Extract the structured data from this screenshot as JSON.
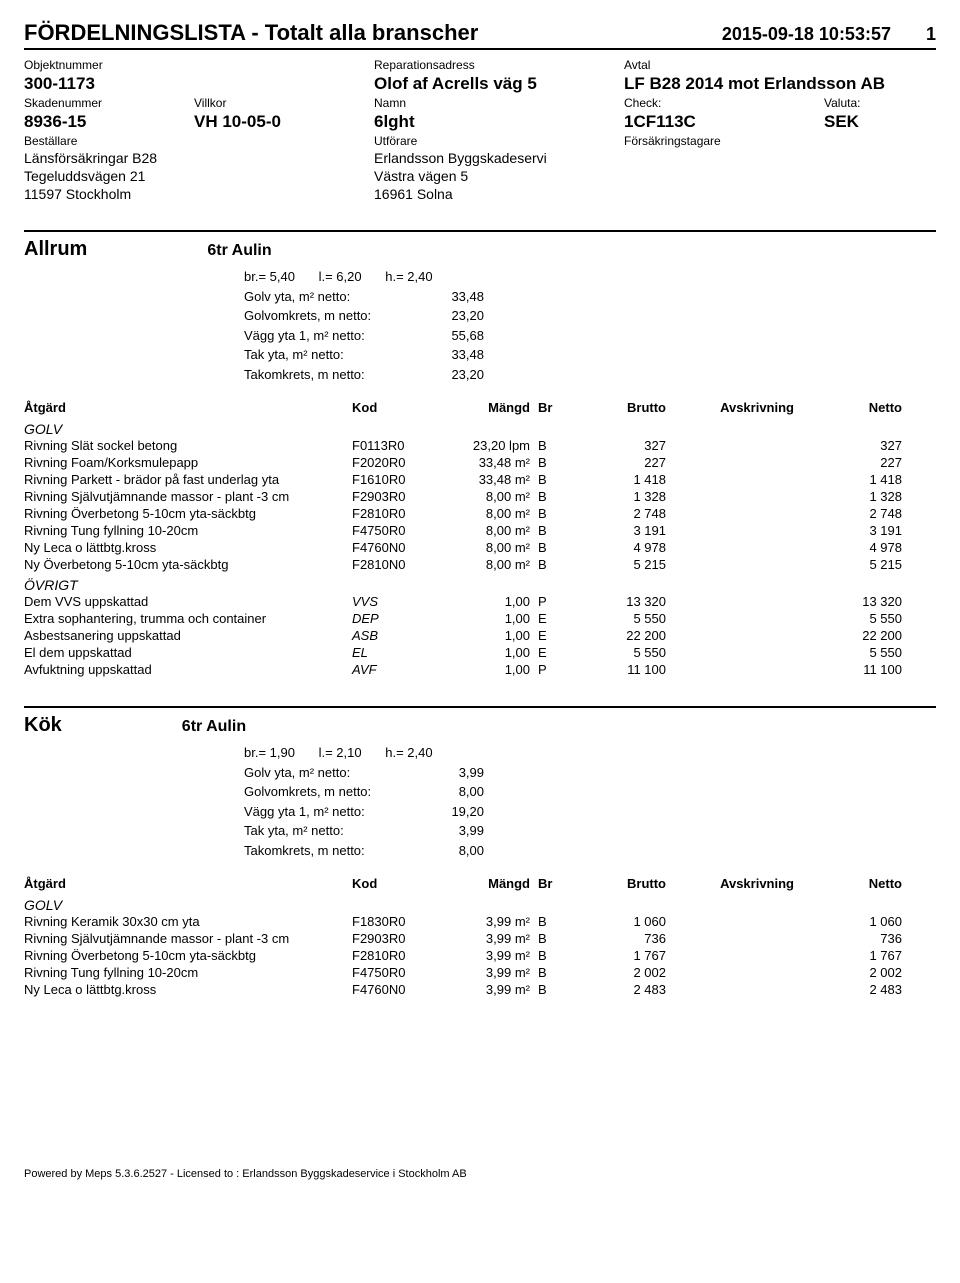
{
  "doc": {
    "title": "FÖRDELNINGSLISTA - Totalt alla branscher",
    "datetime": "2015-09-18 10:53:57",
    "page": "1"
  },
  "header": {
    "l_objekt": "Objektnummer",
    "objekt": "300-1173",
    "l_repadr": "Reparationsadress",
    "repadr": "Olof af Acrells väg 5",
    "l_avtal": "Avtal",
    "avtal": "LF B28 2014 mot Erlandsson AB",
    "l_skad": "Skadenummer",
    "skad": "8936-15",
    "l_villkor": "Villkor",
    "villkor": "VH 10-05-0",
    "l_namn": "Namn",
    "namn": "6lght",
    "l_check": "Check:",
    "check": "1CF113C",
    "l_valuta": "Valuta:",
    "valuta": "SEK",
    "l_best": "Beställare",
    "best1": "Länsförsäkringar B28",
    "best2": "Tegeluddsvägen 21",
    "best3": "11597 Stockholm",
    "l_utf": "Utförare",
    "utf1": "Erlandsson Byggskadeservi",
    "utf2": "Västra vägen 5",
    "utf3": "16961 Solna",
    "l_fors": "Försäkringstagare"
  },
  "cols": {
    "atgard": "Åtgärd",
    "kod": "Kod",
    "mangd": "Mängd",
    "br": "Br",
    "brutto": "Brutto",
    "avskr": "Avskrivning",
    "netto": "Netto"
  },
  "room1": {
    "name": "Allrum",
    "sub": "6tr Aulin",
    "dims": {
      "br": "br.= 5,40",
      "l": "l.= 6,20",
      "h": "h.=  2,40"
    },
    "metrics": [
      {
        "label": "Golv yta, m² netto:",
        "val": "33,48"
      },
      {
        "label": "Golvomkrets, m netto:",
        "val": "23,20"
      },
      {
        "label": "Vägg yta 1, m² netto:",
        "val": "55,68"
      },
      {
        "label": "Tak yta, m² netto:",
        "val": "33,48"
      },
      {
        "label": "Takomkrets, m netto:",
        "val": "23,20"
      }
    ],
    "group1": "GOLV",
    "rows1": [
      {
        "d": "Rivning Slät sockel betong",
        "k": "F0113R0",
        "m": "23,20 lpm",
        "b": "B",
        "brutto": "327",
        "netto": "327"
      },
      {
        "d": "Rivning Foam/Korksmulepapp",
        "k": "F2020R0",
        "m": "33,48 m²",
        "b": "B",
        "brutto": "227",
        "netto": "227"
      },
      {
        "d": "Rivning Parkett - brädor på fast underlag yta",
        "k": "F1610R0",
        "m": "33,48 m²",
        "b": "B",
        "brutto": "1 418",
        "netto": "1 418"
      },
      {
        "d": "Rivning Självutjämnande massor - plant -3 cm",
        "k": "F2903R0",
        "m": "8,00 m²",
        "b": "B",
        "brutto": "1 328",
        "netto": "1 328"
      },
      {
        "d": "Rivning Överbetong 5-10cm yta-säckbtg",
        "k": "F2810R0",
        "m": "8,00 m²",
        "b": "B",
        "brutto": "2 748",
        "netto": "2 748"
      },
      {
        "d": "Rivning Tung fyllning 10-20cm",
        "k": "F4750R0",
        "m": "8,00 m²",
        "b": "B",
        "brutto": "3 191",
        "netto": "3 191"
      },
      {
        "d": "Ny Leca o lättbtg.kross",
        "k": "F4760N0",
        "m": "8,00 m²",
        "b": "B",
        "brutto": "4 978",
        "netto": "4 978"
      },
      {
        "d": "Ny Överbetong 5-10cm yta-säckbtg",
        "k": "F2810N0",
        "m": "8,00 m²",
        "b": "B",
        "brutto": "5 215",
        "netto": "5 215"
      }
    ],
    "group2": "ÖVRIGT",
    "rows2": [
      {
        "d": "Dem VVS uppskattad",
        "k": "VVS",
        "m": "1,00",
        "b": "P",
        "brutto": "13 320",
        "netto": "13 320",
        "ital": true
      },
      {
        "d": "Extra sophantering, trumma och container",
        "k": "DEP",
        "m": "1,00",
        "b": "E",
        "brutto": "5 550",
        "netto": "5 550",
        "ital": true
      },
      {
        "d": "Asbestsanering uppskattad",
        "k": "ASB",
        "m": "1,00",
        "b": "E",
        "brutto": "22 200",
        "netto": "22 200",
        "ital": true
      },
      {
        "d": "El dem uppskattad",
        "k": "EL",
        "m": "1,00",
        "b": "E",
        "brutto": "5 550",
        "netto": "5 550",
        "ital": true
      },
      {
        "d": "Avfuktning uppskattad",
        "k": "AVF",
        "m": "1,00",
        "b": "P",
        "brutto": "11 100",
        "netto": "11 100",
        "ital": true
      }
    ]
  },
  "room2": {
    "name": "Kök",
    "sub": "6tr Aulin",
    "dims": {
      "br": "br.= 1,90",
      "l": "l.= 2,10",
      "h": "h.=  2,40"
    },
    "metrics": [
      {
        "label": "Golv yta, m² netto:",
        "val": "3,99"
      },
      {
        "label": "Golvomkrets, m netto:",
        "val": "8,00"
      },
      {
        "label": "Vägg yta 1, m² netto:",
        "val": "19,20"
      },
      {
        "label": "Tak yta, m² netto:",
        "val": "3,99"
      },
      {
        "label": "Takomkrets, m netto:",
        "val": "8,00"
      }
    ],
    "group1": "GOLV",
    "rows1": [
      {
        "d": "Rivning Keramik 30x30 cm yta",
        "k": "F1830R0",
        "m": "3,99 m²",
        "b": "B",
        "brutto": "1 060",
        "netto": "1 060"
      },
      {
        "d": "Rivning Självutjämnande massor - plant -3 cm",
        "k": "F2903R0",
        "m": "3,99 m²",
        "b": "B",
        "brutto": "736",
        "netto": "736"
      },
      {
        "d": "Rivning Överbetong 5-10cm yta-säckbtg",
        "k": "F2810R0",
        "m": "3,99 m²",
        "b": "B",
        "brutto": "1 767",
        "netto": "1 767"
      },
      {
        "d": "Rivning Tung fyllning 10-20cm",
        "k": "F4750R0",
        "m": "3,99 m²",
        "b": "B",
        "brutto": "2 002",
        "netto": "2 002"
      },
      {
        "d": "Ny Leca o lättbtg.kross",
        "k": "F4760N0",
        "m": "3,99 m²",
        "b": "B",
        "brutto": "2 483",
        "netto": "2 483"
      }
    ]
  },
  "footer": "Powered by Meps 5.3.6.2527 - Licensed to : Erlandsson Byggskadeservice i Stockholm AB"
}
